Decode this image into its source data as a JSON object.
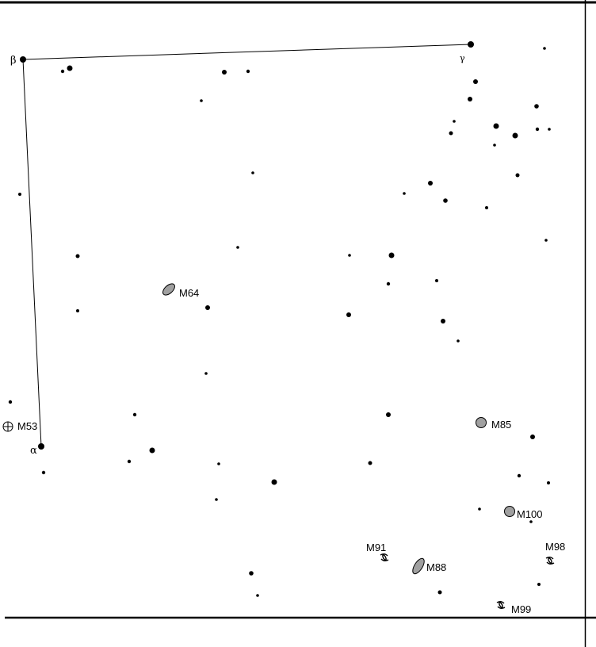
{
  "colors": {
    "ink": "#000000",
    "galaxy_fill": "#a0a0a0",
    "background": "#ffffff"
  },
  "constellation": {
    "stars": [
      {
        "id": "beta",
        "label": "β"
      },
      {
        "id": "gamma",
        "label": "γ"
      },
      {
        "id": "alpha",
        "label": "α"
      }
    ]
  },
  "deep_sky_objects": [
    {
      "id": "m64",
      "label": "M64",
      "kind": "elliptical-galaxy"
    },
    {
      "id": "m53",
      "label": "M53",
      "kind": "globular-cluster"
    },
    {
      "id": "m85",
      "label": "M85",
      "kind": "round-galaxy"
    },
    {
      "id": "m100",
      "label": "M100",
      "kind": "round-galaxy"
    },
    {
      "id": "m91",
      "label": "M91",
      "kind": "spiral-galaxy"
    },
    {
      "id": "m88",
      "label": "M88",
      "kind": "elliptical-galaxy"
    },
    {
      "id": "m98",
      "label": "M98",
      "kind": "spiral-galaxy"
    },
    {
      "id": "m99",
      "label": "M99",
      "kind": "spiral-galaxy"
    }
  ],
  "field_star_count": 63
}
